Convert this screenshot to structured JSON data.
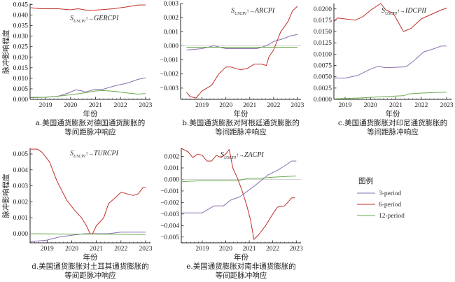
{
  "colors": {
    "3-period": "#8a6fb0",
    "6-period": "#c0302a",
    "12-period": "#6aaa4a",
    "zero_line": "#bbbbbb"
  },
  "y_label": "脉冲影响程度",
  "x_label": "年份",
  "legend": {
    "title": "图例",
    "items": [
      "3-period",
      "6-period",
      "12-period"
    ],
    "placement": "right"
  },
  "chart_data": [
    {
      "id": "a",
      "type": "line",
      "title": {
        "s": "S",
        "sub": "USCPI",
        "arrow": "↑→",
        "target": "GERCPI"
      },
      "caption": [
        "a.美国通货膨胀对德国通货膨胀的",
        "等间距脉冲响应"
      ],
      "xlabel": "年份",
      "ylabel": "脉冲影响程度",
      "xlim": [
        2018.38,
        2023.2
      ],
      "ylim": [
        0,
        0.0455
      ],
      "xticks": [
        2019,
        2020,
        2021,
        2022,
        2023
      ],
      "yticks": [
        0,
        0.005,
        0.01,
        0.015,
        0.02,
        0.025,
        0.03,
        0.035,
        0.04,
        0.045
      ],
      "ytick_labels": [
        "0.000",
        "0.005",
        "0.010",
        "0.015",
        "0.020",
        "0.025",
        "0.030",
        "0.035",
        "0.040",
        "0.045"
      ],
      "series": [
        {
          "name": "3-period",
          "points": [
            [
              2018.4,
              0.001
            ],
            [
              2019,
              0.001
            ],
            [
              2019.5,
              0.0015
            ],
            [
              2019.9,
              0.003
            ],
            [
              2020.2,
              0.0045
            ],
            [
              2020.4,
              0.0042
            ],
            [
              2020.6,
              0.0035
            ],
            [
              2021,
              0.0048
            ],
            [
              2021.3,
              0.0048
            ],
            [
              2021.8,
              0.0065
            ],
            [
              2022.3,
              0.0078
            ],
            [
              2022.7,
              0.0095
            ],
            [
              2023,
              0.0102
            ]
          ]
        },
        {
          "name": "6-period",
          "points": [
            [
              2018.4,
              0.0435
            ],
            [
              2018.8,
              0.043
            ],
            [
              2019.5,
              0.043
            ],
            [
              2020,
              0.0425
            ],
            [
              2020.3,
              0.043
            ],
            [
              2020.7,
              0.0422
            ],
            [
              2021.2,
              0.0425
            ],
            [
              2021.7,
              0.043
            ],
            [
              2022.2,
              0.0438
            ],
            [
              2022.7,
              0.0448
            ],
            [
              2023,
              0.0448
            ]
          ]
        },
        {
          "name": "12-period",
          "points": [
            [
              2018.4,
              0.0008
            ],
            [
              2019,
              0.001
            ],
            [
              2019.5,
              0.0015
            ],
            [
              2020,
              0.0022
            ],
            [
              2020.5,
              0.003
            ],
            [
              2021,
              0.004
            ],
            [
              2021.3,
              0.0042
            ],
            [
              2021.8,
              0.0038
            ],
            [
              2022.3,
              0.003
            ],
            [
              2022.7,
              0.0025
            ],
            [
              2023,
              0.0028
            ]
          ]
        }
      ]
    },
    {
      "id": "b",
      "type": "line",
      "title": {
        "s": "S",
        "sub": "USCPI",
        "arrow": "↑→",
        "target": "ARCPI"
      },
      "caption": [
        "b.美国通货膨胀对阿根廷通货膨胀的",
        "等间距脉冲响应"
      ],
      "xlabel": "年份",
      "ylabel": "",
      "xlim": [
        2018.1,
        2023.15
      ],
      "ylim": [
        -0.0038,
        0.003
      ],
      "xticks": [
        2019,
        2020,
        2021,
        2022,
        2023
      ],
      "yticks": [
        -0.003,
        -0.002,
        -0.001,
        0,
        0.001,
        0.002,
        0.003
      ],
      "ytick_labels": [
        "−0.003",
        "−0.002",
        "−0.001",
        "0.000",
        "0.001",
        "0.002",
        "0.003"
      ],
      "zero_line": true,
      "series": [
        {
          "name": "3-period",
          "points": [
            [
              2018.35,
              -0.0003
            ],
            [
              2019,
              -0.0002
            ],
            [
              2019.5,
              0
            ],
            [
              2020,
              -0.0002
            ],
            [
              2020.5,
              -0.0002
            ],
            [
              2021.3,
              -0.0002
            ],
            [
              2021.7,
              0
            ],
            [
              2022,
              0.0003
            ],
            [
              2022.4,
              0.0005
            ],
            [
              2022.7,
              0.0007
            ],
            [
              2023,
              0.0008
            ]
          ]
        },
        {
          "name": "6-period",
          "points": [
            [
              2018.35,
              -0.0033
            ],
            [
              2018.5,
              -0.0036
            ],
            [
              2018.75,
              -0.0037
            ],
            [
              2019,
              -0.0032
            ],
            [
              2019.4,
              -0.0028
            ],
            [
              2019.7,
              -0.002
            ],
            [
              2020,
              -0.0015
            ],
            [
              2020.2,
              -0.0015
            ],
            [
              2020.6,
              -0.0017
            ],
            [
              2020.9,
              -0.0016
            ],
            [
              2021.2,
              -0.0013
            ],
            [
              2021.5,
              -0.0013
            ],
            [
              2021.7,
              -0.0014
            ],
            [
              2021.8,
              -0.0008
            ],
            [
              2022,
              -0.0003
            ],
            [
              2022.3,
              0.001
            ],
            [
              2022.6,
              0.0017
            ],
            [
              2022.8,
              0.0025
            ],
            [
              2023,
              0.0028
            ]
          ]
        },
        {
          "name": "12-period",
          "points": [
            [
              2018.35,
              -0.0001
            ],
            [
              2023,
              -0.0001
            ]
          ]
        }
      ]
    },
    {
      "id": "c",
      "type": "line",
      "title": {
        "s": "S",
        "sub": "USCPI",
        "arrow": "↑→",
        "target": "IDCPII"
      },
      "caption": [
        "c.美国通货膨胀对印尼通货膨胀的",
        "等间距脉冲响应"
      ],
      "xlabel": "年份",
      "ylabel": "",
      "xlim": [
        2018.56,
        2023.19
      ],
      "ylim": [
        0,
        0.0212
      ],
      "xticks": [
        2019,
        2020,
        2021,
        2022,
        2023
      ],
      "yticks": [
        0,
        0.0025,
        0.005,
        0.0075,
        0.01,
        0.0125,
        0.015,
        0.0175,
        0.02
      ],
      "ytick_labels": [
        "0.0000",
        "0.0025",
        "0.0050",
        "0.0075",
        "0.0100",
        "0.0125",
        "0.0150",
        "0.0175",
        "0.0200"
      ],
      "series": [
        {
          "name": "3-period",
          "points": [
            [
              2018.56,
              0.0047
            ],
            [
              2019,
              0.0047
            ],
            [
              2019.5,
              0.0053
            ],
            [
              2020,
              0.0067
            ],
            [
              2020.3,
              0.0073
            ],
            [
              2020.6,
              0.007
            ],
            [
              2021,
              0.0071
            ],
            [
              2021.4,
              0.0072
            ],
            [
              2021.7,
              0.0085
            ],
            [
              2022.1,
              0.0105
            ],
            [
              2022.5,
              0.0112
            ],
            [
              2022.8,
              0.0118
            ],
            [
              2023,
              0.0118
            ]
          ]
        },
        {
          "name": "6-period",
          "points": [
            [
              2018.56,
              0.0172
            ],
            [
              2018.7,
              0.018
            ],
            [
              2019,
              0.0178
            ],
            [
              2019.4,
              0.0175
            ],
            [
              2019.7,
              0.0183
            ],
            [
              2020,
              0.0197
            ],
            [
              2020.4,
              0.0212
            ],
            [
              2020.6,
              0.0198
            ],
            [
              2020.9,
              0.019
            ],
            [
              2021.3,
              0.015
            ],
            [
              2021.6,
              0.0157
            ],
            [
              2022,
              0.0178
            ],
            [
              2022.4,
              0.0188
            ],
            [
              2022.8,
              0.0198
            ],
            [
              2023,
              0.0202
            ]
          ]
        },
        {
          "name": "12-period",
          "points": [
            [
              2018.56,
              0.0001
            ],
            [
              2019.5,
              0.0003
            ],
            [
              2020.5,
              0.0006
            ],
            [
              2021.3,
              0.0008
            ],
            [
              2021.5,
              0.0012
            ],
            [
              2022,
              0.0014
            ],
            [
              2022.5,
              0.0015
            ],
            [
              2023,
              0.0016
            ]
          ]
        }
      ]
    },
    {
      "id": "d",
      "type": "line",
      "title": {
        "s": "S",
        "sub": "USCPI",
        "arrow": "↑→",
        "target": "TURCPI"
      },
      "caption": [
        "d.美国通货膨胀对土耳其通货膨胀的",
        "等间距脉冲响应"
      ],
      "xlabel": "年份",
      "ylabel": "脉冲影响程度",
      "xlim": [
        2018.31,
        2023.2
      ],
      "ylim": [
        -0.00057,
        0.00535
      ],
      "xticks": [
        2019,
        2020,
        2021,
        2022,
        2023
      ],
      "yticks": [
        0,
        0.001,
        0.002,
        0.003,
        0.004,
        0.005
      ],
      "ytick_labels": [
        "0.000",
        "0.001",
        "0.002",
        "0.003",
        "0.004",
        "0.005"
      ],
      "series": [
        {
          "name": "3-period",
          "points": [
            [
              2018.31,
              -0.0005
            ],
            [
              2019,
              -0.0004
            ],
            [
              2019.5,
              -0.0002
            ],
            [
              2020,
              -0.0001
            ],
            [
              2020.5,
              0
            ],
            [
              2021.5,
              0
            ],
            [
              2022,
              0.0001
            ],
            [
              2022.7,
              0.0001
            ],
            [
              2023,
              0.0001
            ]
          ]
        },
        {
          "name": "6-period",
          "points": [
            [
              2018.31,
              0.0053
            ],
            [
              2018.6,
              0.0053
            ],
            [
              2018.8,
              0.0051
            ],
            [
              2019.1,
              0.0045
            ],
            [
              2019.4,
              0.0033
            ],
            [
              2019.8,
              0.0021
            ],
            [
              2020.1,
              0.0015
            ],
            [
              2020.4,
              0.001
            ],
            [
              2020.6,
              0.0005
            ],
            [
              2020.75,
              0
            ],
            [
              2020.85,
              0
            ],
            [
              2021,
              0.0005
            ],
            [
              2021.3,
              0.001
            ],
            [
              2021.5,
              0.0019
            ],
            [
              2021.8,
              0.0023
            ],
            [
              2022,
              0.0026
            ],
            [
              2022.5,
              0.0024
            ],
            [
              2022.7,
              0.0025
            ],
            [
              2022.9,
              0.0029
            ],
            [
              2023,
              0.0029
            ]
          ]
        },
        {
          "name": "12-period",
          "points": [
            [
              2018.31,
              0
            ],
            [
              2023,
              -5e-05
            ]
          ]
        }
      ]
    },
    {
      "id": "e",
      "type": "line",
      "title": {
        "s": "S",
        "sub": "USCPI",
        "arrow": "↑→",
        "target": "ZACPI"
      },
      "caption": [
        "e.美国通货膨胀对南非通货膨胀的",
        "等间距脉冲响应"
      ],
      "xlabel": "年份",
      "ylabel": "",
      "xlim": [
        2018.11,
        2023.2
      ],
      "ylim": [
        -0.0055,
        0.0027
      ],
      "xticks": [
        2019,
        2020,
        2021,
        2022,
        2023
      ],
      "yticks": [
        -0.005,
        -0.004,
        -0.003,
        -0.002,
        -0.001,
        0,
        0.001,
        0.002
      ],
      "ytick_labels": [
        "−0.005",
        "−0.004",
        "−0.003",
        "−0.002",
        "−0.001",
        "0.000",
        "0.001",
        "0.002"
      ],
      "zero_line": true,
      "series": [
        {
          "name": "3-period",
          "points": [
            [
              2018.11,
              -0.0029
            ],
            [
              2018.6,
              -0.0029
            ],
            [
              2019,
              -0.0029
            ],
            [
              2019.5,
              -0.0023
            ],
            [
              2019.9,
              -0.0023
            ],
            [
              2020.2,
              -0.0018
            ],
            [
              2020.6,
              -0.0015
            ],
            [
              2021,
              -0.0009
            ],
            [
              2021.2,
              -0.0006
            ],
            [
              2021.5,
              -0.0001
            ],
            [
              2021.8,
              0.0004
            ],
            [
              2022.2,
              0.0008
            ],
            [
              2022.6,
              0.0013
            ],
            [
              2022.8,
              0.0016
            ],
            [
              2023,
              0.0016
            ]
          ]
        },
        {
          "name": "6-period",
          "points": [
            [
              2018.11,
              0.0027
            ],
            [
              2018.4,
              0.0024
            ],
            [
              2018.6,
              0.0019
            ],
            [
              2018.8,
              0.0022
            ],
            [
              2019,
              0.0021
            ],
            [
              2019.2,
              0.0016
            ],
            [
              2019.4,
              0.0016
            ],
            [
              2019.6,
              0.0021
            ],
            [
              2019.8,
              0.0019
            ],
            [
              2020,
              0.0022
            ],
            [
              2020.15,
              0.0026
            ],
            [
              2020.3,
              0.001
            ],
            [
              2020.5,
              0.0001
            ],
            [
              2020.7,
              -0.001
            ],
            [
              2020.9,
              -0.0023
            ],
            [
              2021.05,
              -0.0035
            ],
            [
              2021.2,
              -0.0052
            ],
            [
              2021.4,
              -0.0048
            ],
            [
              2021.7,
              -0.004
            ],
            [
              2022,
              -0.003
            ],
            [
              2022.2,
              -0.0024
            ],
            [
              2022.5,
              -0.0023
            ],
            [
              2022.8,
              -0.0016
            ],
            [
              2022.95,
              -0.0016
            ]
          ]
        },
        {
          "name": "12-period",
          "points": [
            [
              2018.11,
              -0.0002
            ],
            [
              2019,
              -0.0001
            ],
            [
              2020,
              -0.0001
            ],
            [
              2020.5,
              -0.0001
            ],
            [
              2021,
              0.0001
            ],
            [
              2021.5,
              0.0001
            ],
            [
              2022,
              0.0002
            ],
            [
              2023,
              0.0003
            ]
          ]
        }
      ]
    }
  ]
}
